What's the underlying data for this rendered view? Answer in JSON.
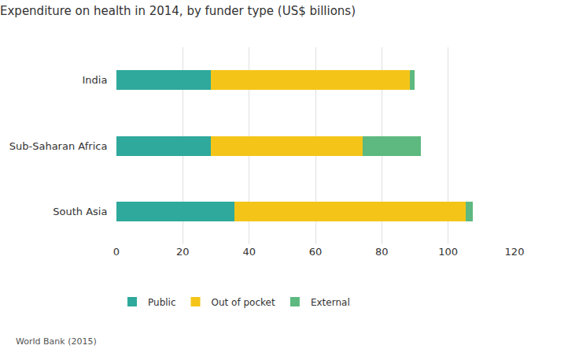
{
  "chart_data": {
    "type": "bar",
    "orientation": "horizontal",
    "stacked": true,
    "title": "Expenditure on health in 2014, by funder type (US$ billions)",
    "categories": [
      "India",
      "Sub-Saharan Africa",
      "South Asia"
    ],
    "series": [
      {
        "name": "Public",
        "color": "#2ea99c",
        "values": [
          28.4,
          28.4,
          35.5
        ]
      },
      {
        "name": "Out of pocket",
        "color": "#f4c518",
        "values": [
          60.0,
          45.9,
          69.7
        ]
      },
      {
        "name": "External",
        "color": "#5db97f",
        "values": [
          1.4,
          17.5,
          2.3
        ]
      }
    ],
    "xlim": [
      0,
      120
    ],
    "xticks": [
      0,
      20,
      40,
      60,
      80,
      100,
      120
    ],
    "grid": true,
    "legend": "bottom",
    "source": "World Bank (2015)"
  }
}
